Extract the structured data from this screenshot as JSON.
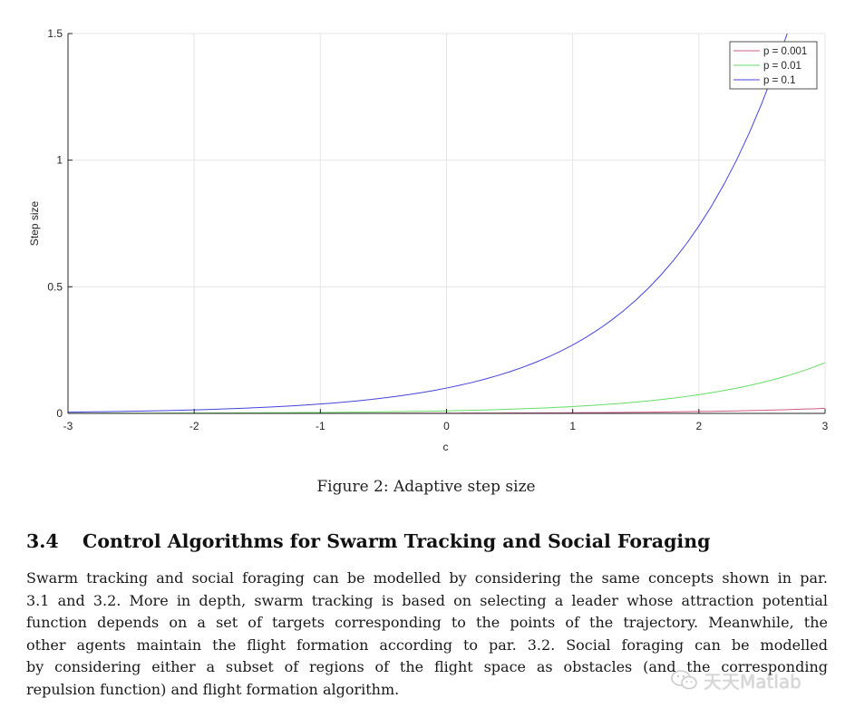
{
  "figure": {
    "caption": "Figure 2: Adaptive step size"
  },
  "chart_data": {
    "type": "line",
    "title": "",
    "xlabel": "c",
    "ylabel": "Step size",
    "xlim": [
      -3,
      3
    ],
    "ylim": [
      0,
      1.5
    ],
    "xticks": [
      "-3",
      "-2",
      "-1",
      "0",
      "1",
      "2",
      "3"
    ],
    "yticks": [
      "0",
      "0.5",
      "1",
      "1.5"
    ],
    "grid": true,
    "legend_position": "top-right",
    "series": [
      {
        "name": "p = 0.001",
        "color": "#d45a8a",
        "x": [
          -3,
          -2,
          -1,
          0,
          1,
          2,
          3
        ],
        "values": [
          5e-05,
          0.00014,
          0.00037,
          0.001,
          0.0027,
          0.0074,
          0.02
        ]
      },
      {
        "name": "p = 0.01",
        "color": "#66dd66",
        "x": [
          -3,
          -2,
          -1,
          0,
          1,
          2,
          3
        ],
        "values": [
          0.0005,
          0.0014,
          0.0037,
          0.01,
          0.027,
          0.074,
          0.2
        ]
      },
      {
        "name": "p = 0.1",
        "color": "#4444dd",
        "x": [
          -3,
          -2,
          -1,
          0,
          1,
          2,
          2.7
        ],
        "values": [
          0.005,
          0.014,
          0.037,
          0.1,
          0.27,
          0.74,
          1.5
        ]
      }
    ]
  },
  "section": {
    "number": "3.4",
    "title": "Control Algorithms for Swarm Tracking and Social Foraging",
    "lines": [
      "Swarm tracking and social foraging can be modelled by considering the same concepts shown in par.",
      "3.1 and 3.2. More in depth, swarm tracking is based on selecting a leader whose attraction potential",
      "function depends on a set of targets corresponding to the points of the trajectory. Meanwhile, the",
      "other agents maintain the flight formation according to par. 3.2. Social foraging can be modelled",
      "by considering either a subset of regions of the flight space as obstacles (and the corresponding",
      "repulsion function) and flight formation algorithm."
    ]
  },
  "watermark": {
    "icon": "wechat-icon",
    "text": "天天Matlab"
  }
}
